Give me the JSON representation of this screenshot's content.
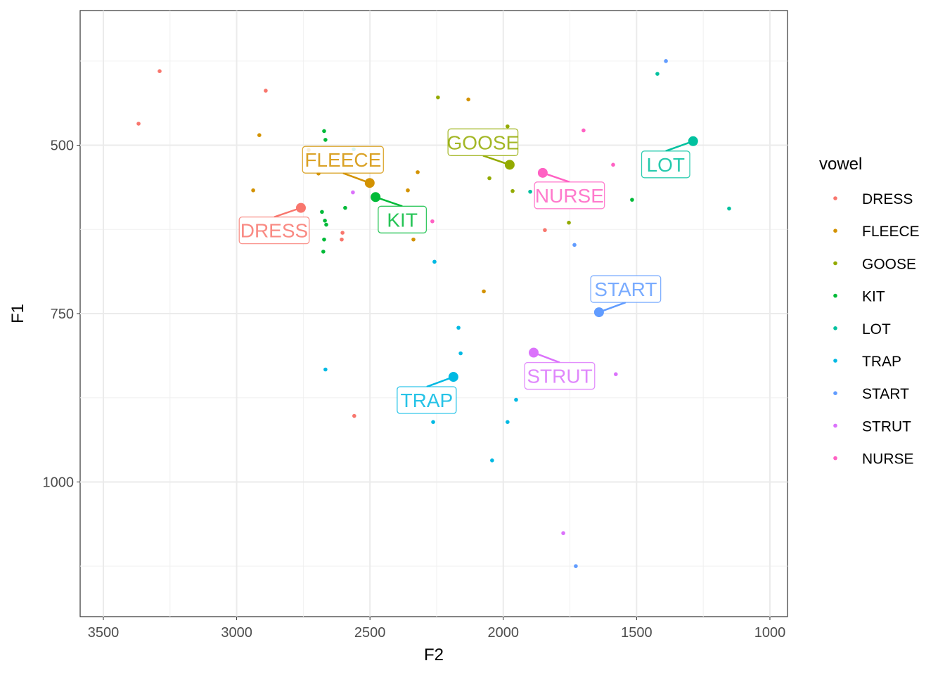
{
  "chart_data": {
    "type": "scatter",
    "title": "",
    "xlabel": "F2",
    "ylabel": "F1",
    "xlim": [
      3587,
      934
    ],
    "ylim": [
      1200,
      300
    ],
    "x_reversed": true,
    "y_reversed": true,
    "xticks": [
      3500,
      3000,
      2500,
      2000,
      1500,
      1000
    ],
    "yticks": [
      500,
      750,
      1000
    ],
    "grid": true,
    "legend_title": "vowel",
    "legend_position": "right",
    "series": [
      {
        "name": "DRESS",
        "color": "#F8766D",
        "points": [
          [
            3289,
            390
          ],
          [
            3368,
            468
          ],
          [
            2891,
            419
          ],
          [
            2603,
            630
          ],
          [
            2606,
            640
          ],
          [
            2559,
            902
          ],
          [
            1844,
            626
          ]
        ],
        "mean": [
          2759,
          593
        ]
      },
      {
        "name": "FLEECE",
        "color": "#D39200",
        "points": [
          [
            2915,
            485
          ],
          [
            2938,
            567
          ],
          [
            2730,
            507
          ],
          [
            2693,
            542
          ],
          [
            2358,
            567
          ],
          [
            2321,
            540
          ],
          [
            2337,
            640
          ],
          [
            2073,
            717
          ],
          [
            2131,
            432
          ]
        ],
        "mean": [
          2501,
          556
        ]
      },
      {
        "name": "GOOSE",
        "color": "#93AA00",
        "points": [
          [
            2245,
            429
          ],
          [
            1984,
            472
          ],
          [
            2052,
            549
          ],
          [
            1965,
            568
          ],
          [
            1754,
            615
          ]
        ],
        "mean": [
          1976,
          529
        ]
      },
      {
        "name": "KIT",
        "color": "#00BA38",
        "points": [
          [
            2672,
            479
          ],
          [
            2667,
            492
          ],
          [
            2680,
            599
          ],
          [
            2669,
            612
          ],
          [
            2664,
            618
          ],
          [
            2672,
            640
          ],
          [
            2675,
            658
          ],
          [
            2593,
            593
          ],
          [
            1517,
            581
          ]
        ],
        "mean": [
          2479,
          577
        ]
      },
      {
        "name": "LOT",
        "color": "#00C19F",
        "points": [
          [
            1422,
            394
          ],
          [
            1153,
            594
          ],
          [
            2561,
            506
          ],
          [
            1899,
            569
          ]
        ],
        "mean": [
          1288,
          494
        ]
      },
      {
        "name": "TRAP",
        "color": "#00B9E3",
        "points": [
          [
            2258,
            673
          ],
          [
            2168,
            771
          ],
          [
            2160,
            809
          ],
          [
            2667,
            833
          ],
          [
            1952,
            878
          ],
          [
            1984,
            911
          ],
          [
            2263,
            911
          ],
          [
            2042,
            968
          ]
        ],
        "mean": [
          2187,
          844
        ]
      },
      {
        "name": "START",
        "color": "#619CFF",
        "points": [
          [
            1390,
            375
          ],
          [
            1733,
            648
          ],
          [
            1728,
            1125
          ]
        ],
        "mean": [
          1641,
          748
        ]
      },
      {
        "name": "STRUT",
        "color": "#DB72FB",
        "points": [
          [
            2564,
            570
          ],
          [
            1578,
            840
          ],
          [
            1775,
            1076
          ]
        ],
        "mean": [
          1886,
          808
        ]
      },
      {
        "name": "NURSE",
        "color": "#FF61C3",
        "points": [
          [
            1699,
            478
          ],
          [
            1588,
            529
          ],
          [
            2266,
            613
          ]
        ],
        "mean": [
          1852,
          541
        ]
      }
    ]
  }
}
